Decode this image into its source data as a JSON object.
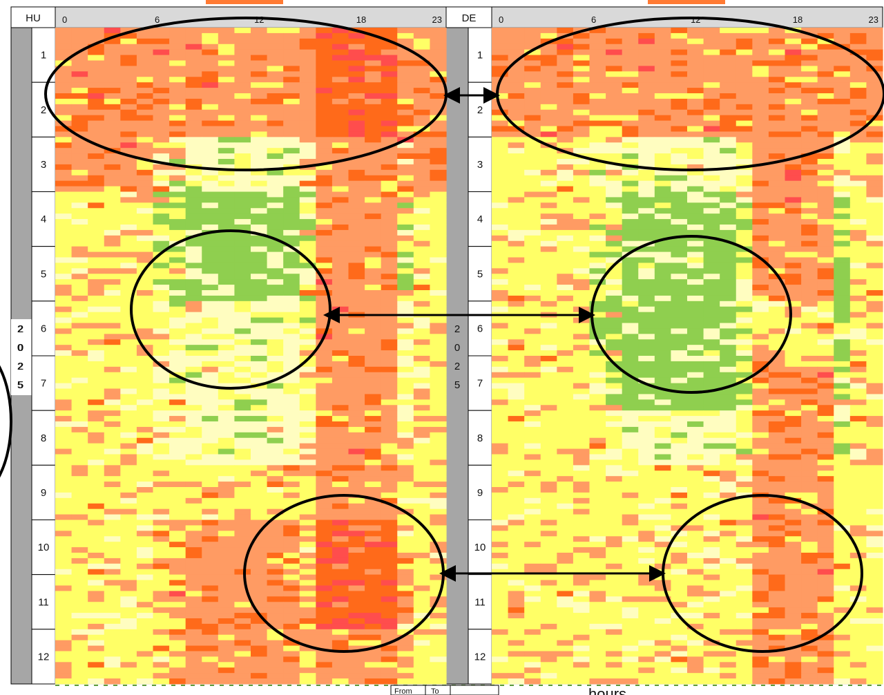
{
  "colors": {
    "very_low": "#8fcf4f",
    "low": "#fffdc0",
    "mid": "#ffff66",
    "high": "#ff9b63",
    "higher": "#ff6a1a",
    "highest": "#ff4d4d",
    "frame": "#a6a6a6",
    "tab_accent": "#ff7a33"
  },
  "chart_data": [
    {
      "type": "heatmap",
      "country": "HU",
      "year_label": [
        "2",
        "0",
        "2",
        "5"
      ],
      "x_ticks": [
        "0",
        "6",
        "12",
        "18",
        "23"
      ],
      "x_range": [
        0,
        23
      ],
      "months": [
        "1",
        "2",
        "3",
        "4",
        "5",
        "6",
        "7",
        "8",
        "9",
        "10",
        "11",
        "12"
      ],
      "value_levels": [
        "very_low",
        "low",
        "mid",
        "high",
        "higher",
        "highest"
      ],
      "profile_by_month": [
        {
          "month": "1",
          "night": "high",
          "midday": "high",
          "evening": "higher"
        },
        {
          "month": "2",
          "night": "high",
          "midday": "high",
          "evening": "higher"
        },
        {
          "month": "3",
          "night": "high",
          "midday": "low",
          "evening": "high"
        },
        {
          "month": "4",
          "night": "mid",
          "midday": "very_low",
          "evening": "high"
        },
        {
          "month": "5",
          "night": "mid",
          "midday": "very_low",
          "evening": "high"
        },
        {
          "month": "6",
          "night": "mid",
          "midday": "low",
          "evening": "high"
        },
        {
          "month": "7",
          "night": "mid",
          "midday": "low",
          "evening": "high"
        },
        {
          "month": "8",
          "night": "mid",
          "midday": "low",
          "evening": "high"
        },
        {
          "month": "9",
          "night": "mid",
          "midday": "mid",
          "evening": "high"
        },
        {
          "month": "10",
          "night": "mid",
          "midday": "high",
          "evening": "higher"
        },
        {
          "month": "11",
          "night": "mid",
          "midday": "high",
          "evening": "higher"
        },
        {
          "month": "12",
          "night": "mid",
          "midday": "high",
          "evening": "high"
        }
      ]
    },
    {
      "type": "heatmap",
      "country": "DE",
      "year_label": [
        "2",
        "0",
        "2",
        "5"
      ],
      "x_ticks": [
        "0",
        "6",
        "12",
        "18",
        "23"
      ],
      "x_range": [
        0,
        23
      ],
      "months": [
        "1",
        "2",
        "3",
        "4",
        "5",
        "6",
        "7",
        "8",
        "9",
        "10",
        "11",
        "12"
      ],
      "value_levels": [
        "very_low",
        "low",
        "mid",
        "high",
        "higher",
        "highest"
      ],
      "profile_by_month": [
        {
          "month": "1",
          "night": "high",
          "midday": "high",
          "evening": "high"
        },
        {
          "month": "2",
          "night": "high",
          "midday": "high",
          "evening": "high"
        },
        {
          "month": "3",
          "night": "mid",
          "midday": "low",
          "evening": "high"
        },
        {
          "month": "4",
          "night": "mid",
          "midday": "very_low",
          "evening": "high"
        },
        {
          "month": "5",
          "night": "mid",
          "midday": "very_low",
          "evening": "high"
        },
        {
          "month": "6",
          "night": "mid",
          "midday": "very_low",
          "evening": "mid"
        },
        {
          "month": "7",
          "night": "mid",
          "midday": "very_low",
          "evening": "high"
        },
        {
          "month": "8",
          "night": "mid",
          "midday": "low",
          "evening": "high"
        },
        {
          "month": "9",
          "night": "mid",
          "midday": "mid",
          "evening": "high"
        },
        {
          "month": "10",
          "night": "mid",
          "midday": "mid",
          "evening": "high"
        },
        {
          "month": "11",
          "night": "mid",
          "midday": "mid",
          "evening": "high"
        },
        {
          "month": "12",
          "night": "mid",
          "midday": "mid",
          "evening": "high"
        }
      ]
    }
  ],
  "bottom": {
    "from_label": "From",
    "to_label": "To",
    "hours_label": "hours"
  }
}
